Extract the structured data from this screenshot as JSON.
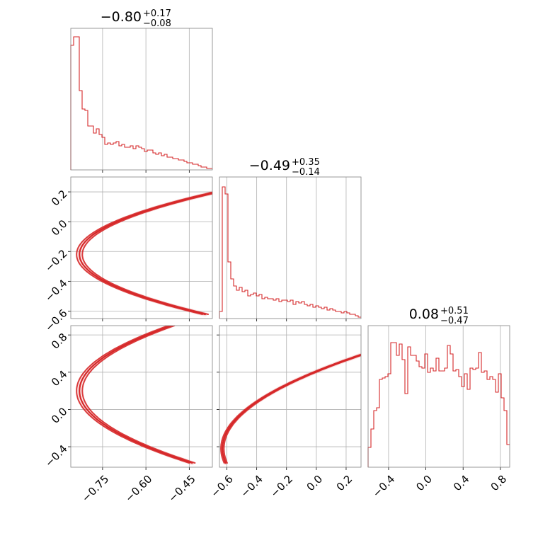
{
  "chart_data": {
    "type": "corner",
    "color": "#d62728",
    "parameters": [
      {
        "title_value": "−0.80",
        "err_plus": "+0.17",
        "err_minus": "−0.08",
        "range": [
          -0.86,
          -0.37
        ]
      },
      {
        "title_value": "−0.49",
        "err_plus": "+0.35",
        "err_minus": "−0.14",
        "range": [
          -0.65,
          0.3
        ]
      },
      {
        "title_value": "0.08",
        "err_plus": "+0.51",
        "err_minus": "−0.47",
        "range": [
          -0.62,
          0.9
        ]
      }
    ],
    "axes": [
      {
        "id": "x0",
        "ticks": [
          -0.75,
          -0.6,
          -0.45
        ],
        "tick_labels": [
          "−0.75",
          "−0.60",
          "−0.45"
        ]
      },
      {
        "id": "x1",
        "ticks": [
          -0.6,
          -0.4,
          -0.2,
          0.0,
          0.2
        ],
        "tick_labels": [
          "−0.6",
          "−0.4",
          "−0.2",
          "0.0",
          "0.2"
        ]
      },
      {
        "id": "x2",
        "ticks": [
          -0.4,
          0.0,
          0.4,
          0.8
        ],
        "tick_labels": [
          "−0.4",
          "0.0",
          "0.4",
          "0.8"
        ]
      },
      {
        "id": "y1",
        "ticks": [
          -0.6,
          -0.4,
          -0.2,
          0.0,
          0.2
        ],
        "tick_labels": [
          "−0.6",
          "−0.4",
          "−0.2",
          "0.0",
          "0.2"
        ]
      },
      {
        "id": "y2",
        "ticks": [
          -0.4,
          0.0,
          0.4,
          0.8
        ],
        "tick_labels": [
          "−0.4",
          "0.0",
          "0.4",
          "0.8"
        ]
      }
    ],
    "histograms": [
      {
        "param": 0,
        "values": [
          0.88,
          0.94,
          0.94,
          0.56,
          0.43,
          0.42,
          0.31,
          0.31,
          0.26,
          0.29,
          0.25,
          0.23,
          0.18,
          0.19,
          0.18,
          0.19,
          0.2,
          0.17,
          0.18,
          0.16,
          0.16,
          0.17,
          0.15,
          0.17,
          0.16,
          0.15,
          0.13,
          0.14,
          0.14,
          0.12,
          0.11,
          0.12,
          0.1,
          0.11,
          0.09,
          0.09,
          0.08,
          0.08,
          0.07,
          0.07,
          0.06,
          0.05,
          0.05,
          0.04,
          0.04,
          0.03,
          0.02,
          0.02,
          0.01,
          0.01
        ]
      },
      {
        "param": 1,
        "values": [
          0.05,
          0.93,
          0.88,
          0.4,
          0.28,
          0.23,
          0.2,
          0.22,
          0.19,
          0.2,
          0.16,
          0.17,
          0.18,
          0.16,
          0.17,
          0.14,
          0.15,
          0.14,
          0.14,
          0.13,
          0.14,
          0.12,
          0.13,
          0.13,
          0.12,
          0.13,
          0.1,
          0.12,
          0.11,
          0.12,
          0.1,
          0.09,
          0.1,
          0.08,
          0.09,
          0.08,
          0.07,
          0.08,
          0.06,
          0.07,
          0.06,
          0.05,
          0.05,
          0.04,
          0.05,
          0.04,
          0.03,
          0.03,
          0.02,
          0.01
        ]
      },
      {
        "param": 2,
        "values": [
          0.14,
          0.27,
          0.4,
          0.42,
          0.62,
          0.63,
          0.64,
          0.66,
          0.88,
          0.88,
          0.79,
          0.87,
          0.76,
          0.52,
          0.85,
          0.79,
          0.79,
          0.75,
          0.71,
          0.7,
          0.8,
          0.67,
          0.7,
          0.68,
          0.77,
          0.68,
          0.68,
          0.7,
          0.86,
          0.8,
          0.68,
          0.69,
          0.64,
          0.57,
          0.66,
          0.55,
          0.7,
          0.69,
          0.7,
          0.81,
          0.67,
          0.68,
          0.62,
          0.64,
          0.62,
          0.53,
          0.66,
          0.49,
          0.4,
          0.16
        ]
      }
    ],
    "contours_2d": [
      {
        "x_param": 0,
        "y_param": 1,
        "relation": "x = -0.83 + 2.7*(y + 0.22)^2"
      },
      {
        "x_param": 0,
        "y_param": 2,
        "relation": "x = -0.83 + 0.65*(y - 0.2)^2"
      },
      {
        "x_param": 1,
        "y_param": 2,
        "relation": "x = -0.63 + 0.92*(y + 0.42)^2"
      }
    ],
    "grid": true,
    "title": "",
    "xlabel": "",
    "ylabel": ""
  }
}
